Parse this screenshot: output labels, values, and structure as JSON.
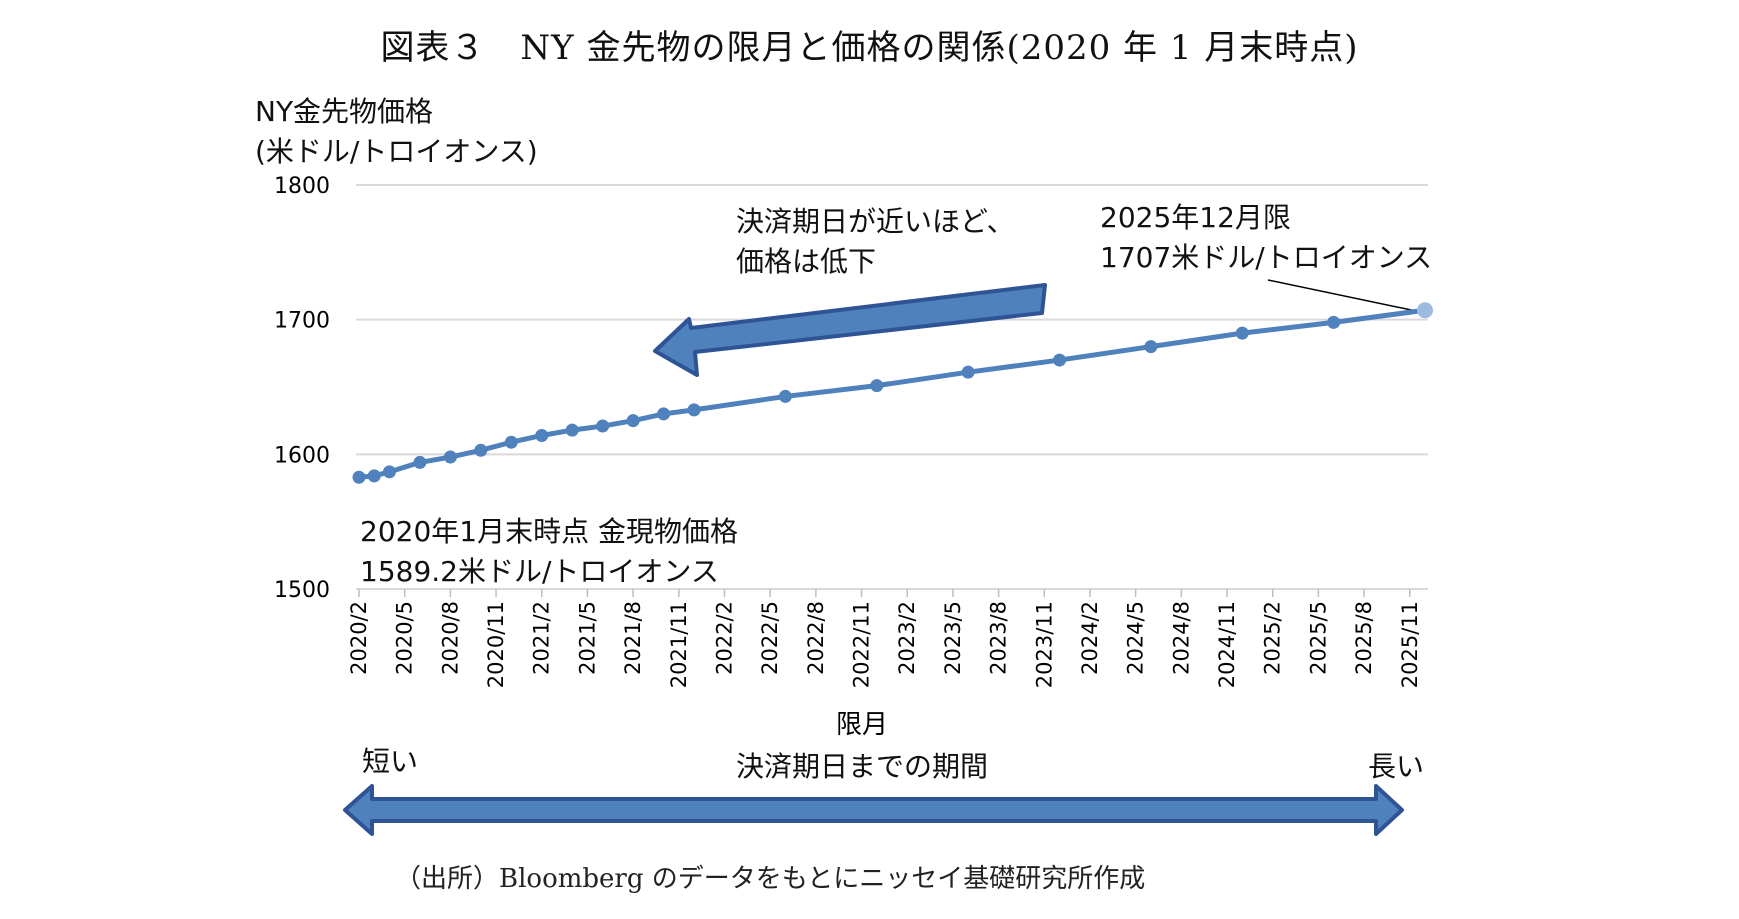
{
  "figure_title": "図表３　NY 金先物の限月と価格の関係(2020 年 1 月末時点)",
  "source_note": "（出所）Bloomberg のデータをもとにニッセイ基礎研究所作成",
  "annotations": {
    "near_label": "決済期日が近いほど、",
    "near_label2": "価格は低下",
    "end_label1": "2025年12月限",
    "end_label2": "1707米ドル/トロイオンス",
    "spot_label1": "2020年1月末時点 金現物価格",
    "spot_label2": "1589.2米ドル/トロイオンス"
  },
  "period_bar": {
    "short": "短い",
    "title": "決済期日までの期間",
    "long": "長い"
  },
  "colors": {
    "line": "#4f81bd",
    "arrow_fill": "#4f81bd",
    "arrow_stroke": "#2f5496",
    "grid": "#d9d9d9"
  },
  "chart_data": {
    "type": "line",
    "ylabel": "NY金先物価格",
    "ylabel2": "(米ドル/トロイオンス)",
    "xlabel": "限月",
    "ylim": [
      1500,
      1800
    ],
    "yticks": [
      1500,
      1600,
      1700,
      1800
    ],
    "grid": true,
    "xticks": [
      "2020/2",
      "2020/5",
      "2020/8",
      "2020/11",
      "2021/2",
      "2021/5",
      "2021/8",
      "2021/11",
      "2022/2",
      "2022/5",
      "2022/8",
      "2022/11",
      "2023/2",
      "2023/5",
      "2023/8",
      "2023/11",
      "2024/2",
      "2024/5",
      "2024/8",
      "2024/11",
      "2025/2",
      "2025/5",
      "2025/8",
      "2025/11"
    ],
    "x": [
      "2020/2",
      "2020/3",
      "2020/4",
      "2020/6",
      "2020/8",
      "2020/10",
      "2020/12",
      "2021/2",
      "2021/4",
      "2021/6",
      "2021/8",
      "2021/10",
      "2021/12",
      "2022/6",
      "2022/12",
      "2023/6",
      "2023/12",
      "2024/6",
      "2024/12",
      "2025/6",
      "2025/12"
    ],
    "values": [
      1583,
      1584,
      1587,
      1594,
      1598,
      1603,
      1609,
      1614,
      1618,
      1621,
      1625,
      1630,
      1633,
      1643,
      1651,
      1661,
      1670,
      1680,
      1690,
      1698,
      1707
    ]
  }
}
